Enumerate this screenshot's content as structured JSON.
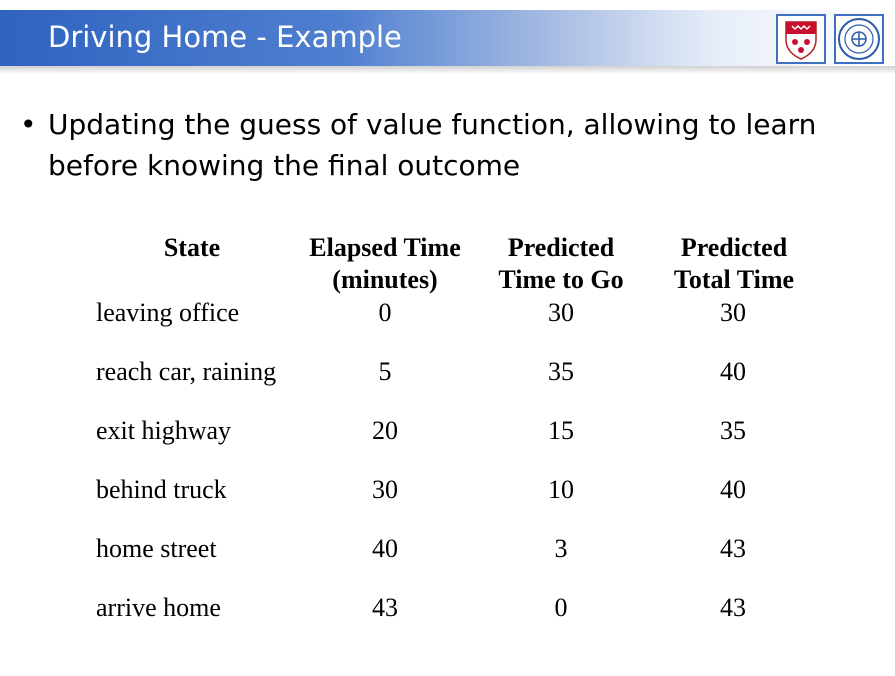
{
  "header": {
    "title": "Driving Home - Example",
    "logos": [
      "university-crest-icon",
      "university-seal-icon"
    ],
    "accent_color": "#2f63c0"
  },
  "bullet": {
    "text": "Updating the guess of value function, allowing to learn before knowing the final outcome"
  },
  "table": {
    "columns": [
      {
        "line1": "State",
        "line2": ""
      },
      {
        "line1": "Elapsed Time",
        "line2": "(minutes)"
      },
      {
        "line1": "Predicted",
        "line2": "Time to Go"
      },
      {
        "line1": "Predicted",
        "line2": "Total Time"
      }
    ],
    "rows": [
      {
        "state": "leaving office",
        "elapsed": "0",
        "to_go": "30",
        "total": "30"
      },
      {
        "state": "reach car, raining",
        "elapsed": "5",
        "to_go": "35",
        "total": "40"
      },
      {
        "state": "exit highway",
        "elapsed": "20",
        "to_go": "15",
        "total": "35"
      },
      {
        "state": "behind truck",
        "elapsed": "30",
        "to_go": "10",
        "total": "40"
      },
      {
        "state": "home street",
        "elapsed": "40",
        "to_go": "3",
        "total": "43"
      },
      {
        "state": "arrive home",
        "elapsed": "43",
        "to_go": "0",
        "total": "43"
      }
    ]
  }
}
